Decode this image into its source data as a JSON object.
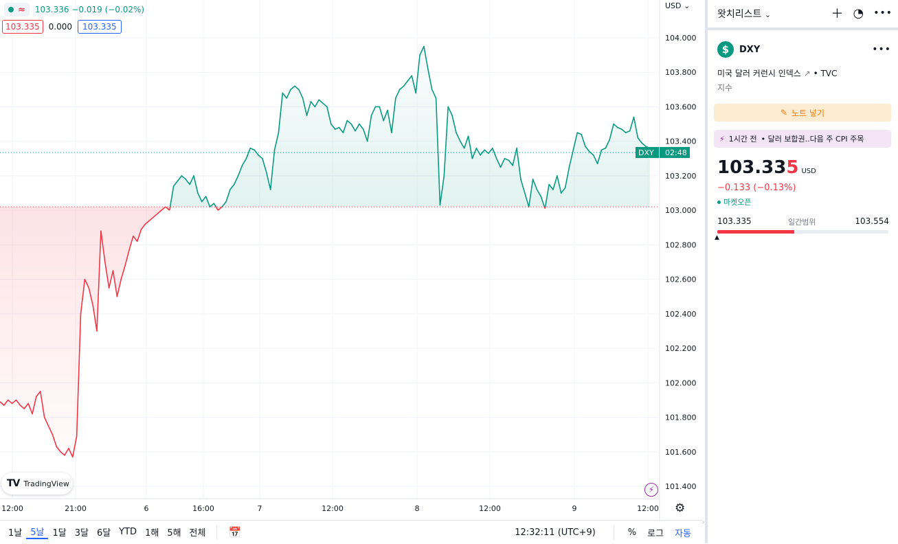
{
  "legend": {
    "wave_icon": "≈",
    "price_line": "103.336 −0.019 (−0.02%)",
    "bid": "103.335",
    "spread": "0.000",
    "ask": "103.335"
  },
  "axis": {
    "currency": "USD",
    "y_ticks": [
      "104.000",
      "103.800",
      "103.600",
      "103.400",
      "103.200",
      "103.000",
      "102.800",
      "102.600",
      "102.400",
      "102.200",
      "102.000",
      "101.800",
      "101.600",
      "101.400"
    ],
    "x_ticks": [
      "12:00",
      "21:00",
      "6",
      "16:00",
      "7",
      "12:00",
      "8",
      "12:00",
      "9",
      "12:00"
    ],
    "symbol_tag": "DXY",
    "countdown": "02:48"
  },
  "tradingview_badge": "TradingView",
  "bottom_bar": {
    "ranges": [
      "1날",
      "5날",
      "1달",
      "3달",
      "6달",
      "YTD",
      "1해",
      "5해",
      "전체"
    ],
    "active_range": "5날",
    "time": "12:32:11 (UTC+9)",
    "percent": "%",
    "log": "로그",
    "auto": "자동"
  },
  "watchlist": {
    "title": "왓치리스트",
    "symbol": "DXY",
    "description": "미국 달러 커런시 인덱스",
    "exchange": "• TVC",
    "type": "지수",
    "note_button": "노트 넣기",
    "news": {
      "time": "1시간 전",
      "text": "• 달러 보합권..다음 주 CPI 주목"
    },
    "price_main": "103.33",
    "price_last_digit": "5",
    "price_currency": "USD",
    "change": "−0.133 (−0.13%)",
    "market_status": "마켓오픈",
    "day_range": {
      "low": "103.335",
      "label": "일간범위",
      "high": "103.554",
      "position": 0.45
    }
  },
  "colors": {
    "up": "#089981",
    "down": "#f23645",
    "accent": "#2962ff"
  },
  "chart_data": {
    "type": "line",
    "series": [
      {
        "values": [
          101.89,
          101.87,
          101.9,
          101.88,
          101.9,
          101.87,
          101.85,
          101.88,
          101.82,
          101.92,
          101.95,
          101.8,
          101.75,
          101.7,
          101.63,
          101.6,
          101.58,
          101.62,
          101.57,
          101.69,
          102.4,
          102.6,
          102.55,
          102.45,
          102.3,
          102.88,
          102.7,
          102.55,
          102.65,
          102.5,
          102.6,
          102.68,
          102.77,
          102.85,
          102.82,
          102.89,
          102.92,
          102.94,
          102.96,
          102.98,
          103.0,
          103.02,
          103.0,
          103.14,
          103.17,
          103.2,
          103.18,
          103.15,
          103.2,
          103.1,
          103.05,
          103.08,
          103.02,
          103.04,
          103.0,
          103.02,
          103.05,
          103.12,
          103.15,
          103.2,
          103.26,
          103.3,
          103.36,
          103.35,
          103.32,
          103.3,
          103.22,
          103.12,
          103.35,
          103.45,
          103.68,
          103.65,
          103.7,
          103.72,
          103.7,
          103.65,
          103.55,
          103.63,
          103.6,
          103.64,
          103.62,
          103.6,
          103.5,
          103.47,
          103.48,
          103.45,
          103.52,
          103.5,
          103.46,
          103.5,
          103.47,
          103.4,
          103.55,
          103.6,
          103.6,
          103.52,
          103.58,
          103.45,
          103.65,
          103.7,
          103.72,
          103.75,
          103.78,
          103.68,
          103.9,
          103.95,
          103.82,
          103.7,
          103.65,
          103.03,
          103.2,
          103.6,
          103.55,
          103.45,
          103.4,
          103.36,
          103.43,
          103.3,
          103.36,
          103.32,
          103.35,
          103.33,
          103.36,
          103.3,
          103.25,
          103.3,
          103.29,
          103.26,
          103.36,
          103.18,
          103.1,
          103.02,
          103.18,
          103.12,
          103.08,
          103.01,
          103.15,
          103.12,
          103.2,
          103.1,
          103.13,
          103.25,
          103.35,
          103.45,
          103.44,
          103.37,
          103.34,
          103.32,
          103.27,
          103.35,
          103.36,
          103.41,
          103.5,
          103.48,
          103.47,
          103.45,
          103.46,
          103.54,
          103.42,
          103.39,
          103.37,
          103.36
        ]
      }
    ],
    "prev_close": 103.02,
    "last": 103.335,
    "ylim": [
      101.4,
      104.0
    ],
    "grid": true
  }
}
